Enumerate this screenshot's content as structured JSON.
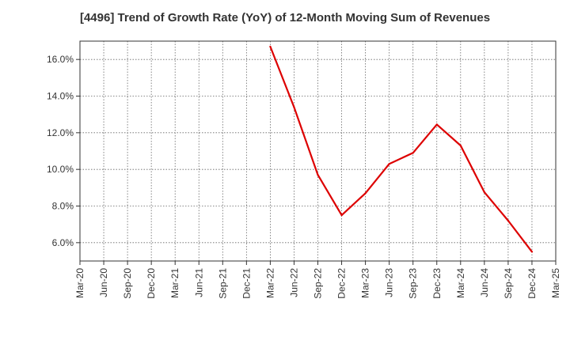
{
  "chart_data": {
    "type": "line",
    "title": "[4496]  Trend of Growth Rate (YoY) of 12-Month Moving Sum of Revenues",
    "xlabel": "",
    "ylabel": "",
    "x_ticks": [
      "Mar-20",
      "Jun-20",
      "Sep-20",
      "Dec-20",
      "Mar-21",
      "Jun-21",
      "Sep-21",
      "Dec-21",
      "Mar-22",
      "Jun-22",
      "Sep-22",
      "Dec-22",
      "Mar-23",
      "Jun-23",
      "Sep-23",
      "Dec-23",
      "Mar-24",
      "Jun-24",
      "Sep-24",
      "Dec-24",
      "Mar-25"
    ],
    "y_ticks": [
      "6.0%",
      "8.0%",
      "10.0%",
      "12.0%",
      "14.0%",
      "16.0%"
    ],
    "y_tick_values": [
      6,
      8,
      10,
      12,
      14,
      16
    ],
    "ylim": [
      5.0,
      17.0
    ],
    "grid": true,
    "series": [
      {
        "color": "#dd0000",
        "x": [
          "Mar-22",
          "Jun-22",
          "Sep-22",
          "Dec-22",
          "Mar-23",
          "Jun-23",
          "Sep-23",
          "Dec-23",
          "Mar-24",
          "Jun-24",
          "Sep-24",
          "Dec-24"
        ],
        "values": [
          16.7,
          13.4,
          9.7,
          7.5,
          8.7,
          10.3,
          10.9,
          12.45,
          11.3,
          8.75,
          7.2,
          5.5
        ]
      }
    ]
  }
}
